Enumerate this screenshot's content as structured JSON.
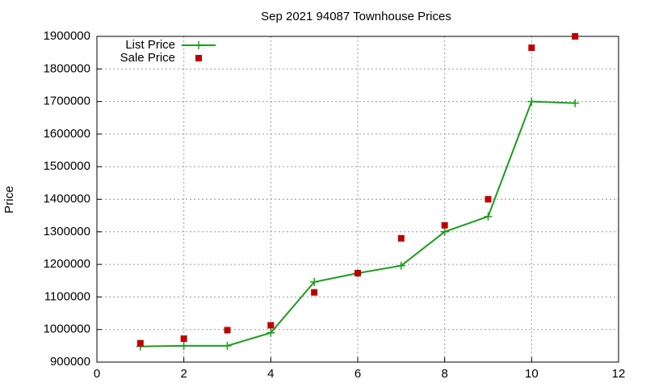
{
  "chart_data": {
    "type": "line",
    "title": "Sep 2021 94087 Townhouse Prices",
    "y_label": "Price",
    "x": [
      1,
      2,
      3,
      4,
      5,
      6,
      7,
      8,
      9,
      10,
      11
    ],
    "series": [
      {
        "name": "List Price",
        "color": "#1a9e1a",
        "style": "lines+markers",
        "values": [
          948000,
          950000,
          950000,
          990000,
          1146000,
          1173000,
          1196000,
          1300000,
          1347000,
          1700000,
          1695000
        ]
      },
      {
        "name": "Sale Price",
        "color": "#c00000",
        "style": "markers",
        "values": [
          958000,
          972000,
          998000,
          1013000,
          1114000,
          1173000,
          1280000,
          1320000,
          1400000,
          1865000,
          1900000
        ]
      }
    ],
    "xlim": [
      0,
      12
    ],
    "xticks": [
      0,
      2,
      4,
      6,
      8,
      10,
      12
    ],
    "ylim": [
      900000,
      1900000
    ],
    "yticks": [
      900000,
      1000000,
      1100000,
      1200000,
      1300000,
      1400000,
      1500000,
      1600000,
      1700000,
      1800000,
      1900000
    ],
    "grid": true,
    "legend": "top-left"
  }
}
